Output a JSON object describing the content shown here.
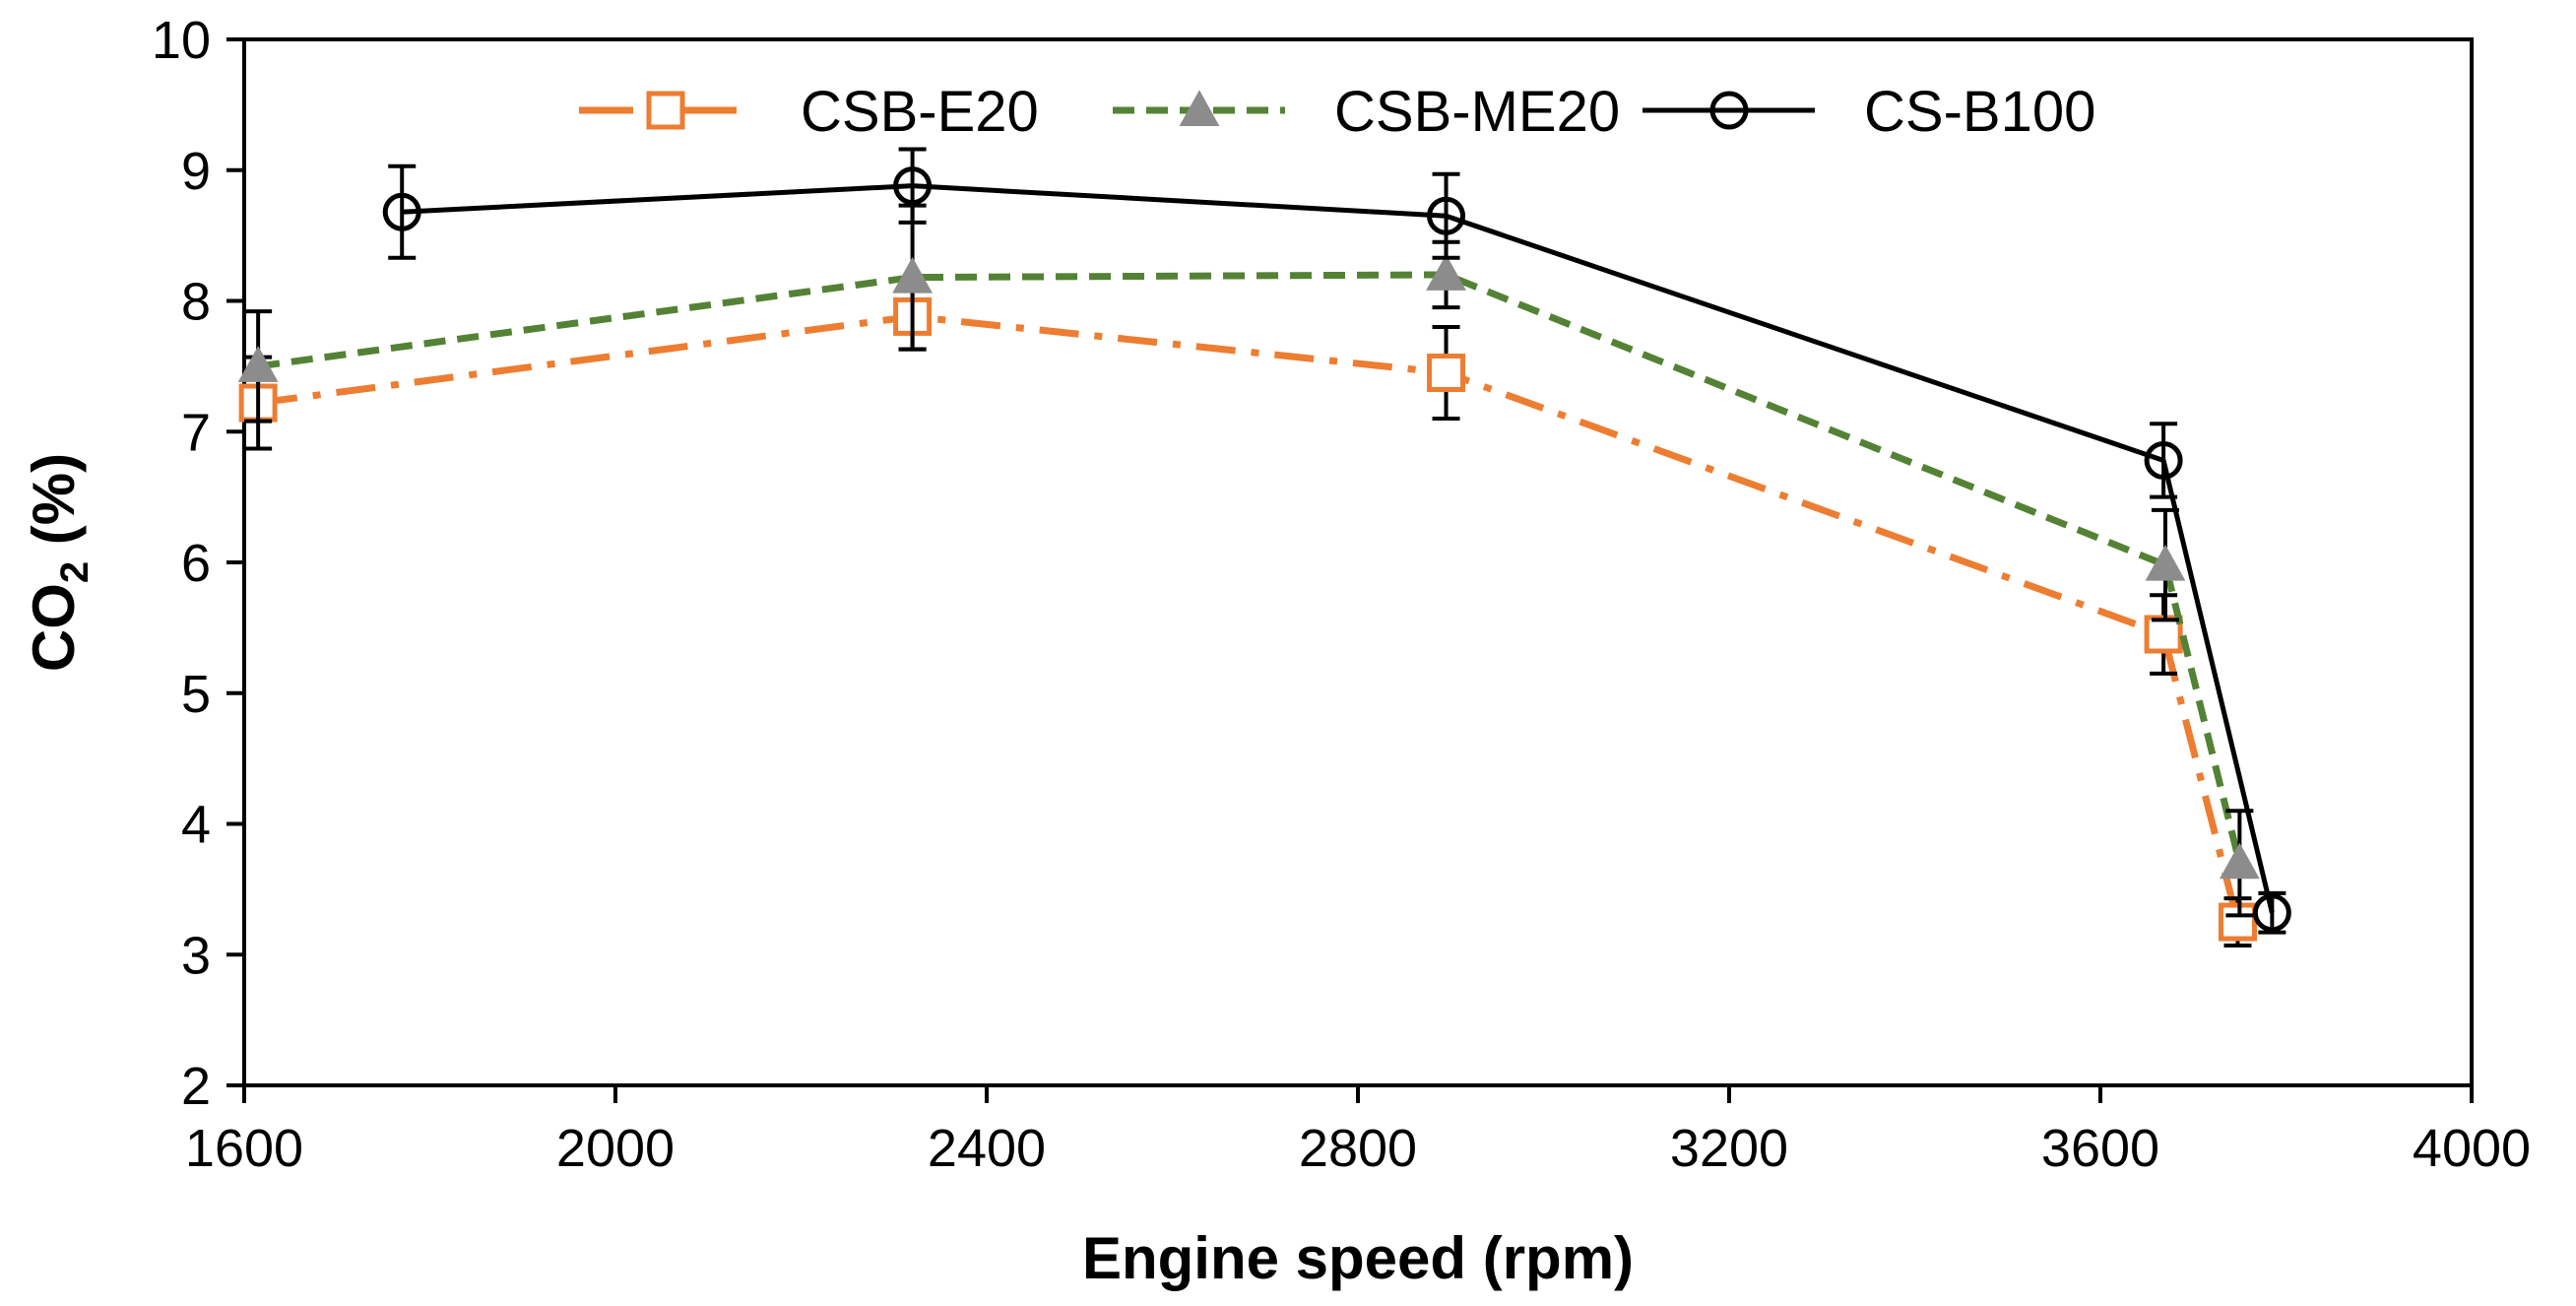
{
  "chart_data": {
    "type": "line",
    "title": "",
    "xlabel": "Engine speed (rpm)",
    "ylabel": {
      "main": "CO",
      "sub": "2",
      "suffix": " (%)"
    },
    "xlim": [
      1600,
      4000
    ],
    "ylim": [
      2,
      10
    ],
    "xticks": [
      "1600",
      "2000",
      "2400",
      "2800",
      "3200",
      "3600",
      "4000"
    ],
    "yticks": [
      "2",
      "3",
      "4",
      "5",
      "6",
      "7",
      "8",
      "9",
      "10"
    ],
    "grid": false,
    "legend_position": "top",
    "series": [
      {
        "name": "CSB-E20",
        "color": "#ED7D31",
        "marker": "square-open",
        "line": "dash-dot",
        "x": [
          1615,
          2320,
          2895,
          3668,
          3748
        ],
        "y": [
          7.22,
          7.88,
          7.45,
          5.45,
          3.25
        ],
        "err": [
          0.35,
          0.25,
          0.35,
          0.3,
          0.18
        ]
      },
      {
        "name": "CSB-ME20",
        "color": "#548235",
        "marker_color": "#8C8C8C",
        "marker": "triangle",
        "line": "dash",
        "x": [
          1615,
          2320,
          2895,
          3670,
          3750
        ],
        "y": [
          7.5,
          8.18,
          8.2,
          5.98,
          3.7
        ],
        "err": [
          0.42,
          0.55,
          0.25,
          0.42,
          0.4
        ]
      },
      {
        "name": "CS-B100",
        "color": "#000000",
        "marker": "circle-open",
        "line": "solid",
        "x": [
          1770,
          2320,
          2895,
          3668,
          3785
        ],
        "y": [
          8.68,
          8.88,
          8.65,
          6.78,
          3.32
        ],
        "err": [
          0.35,
          0.28,
          0.32,
          0.28,
          0.15
        ]
      }
    ]
  }
}
